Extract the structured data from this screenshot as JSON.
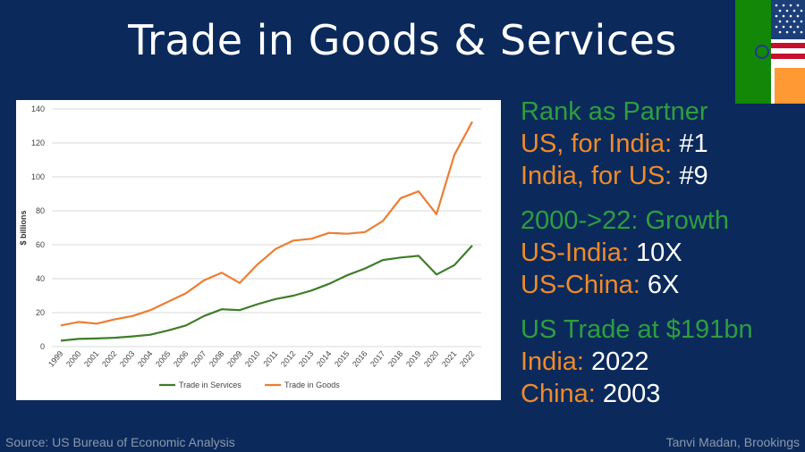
{
  "title": "Trade in Goods & Services",
  "right_panel": {
    "rank_heading": "Rank as Partner",
    "rank_1_label": "US, for India:",
    "rank_1_value": "#1",
    "rank_2_label": "India, for US:",
    "rank_2_value": "#9",
    "growth_heading": "2000->22: Growth",
    "growth_1_label": "US-India:",
    "growth_1_value": "10X",
    "growth_2_label": "US-China:",
    "growth_2_value": "6X",
    "trade_heading": "US Trade at $191bn",
    "trade_1_label": "India:",
    "trade_1_value": "2022",
    "trade_2_label": "China:",
    "trade_2_value": "2003"
  },
  "footer": {
    "source": "Source: US Bureau of Economic Analysis",
    "credit": "Tanvi Madan, Brookings"
  },
  "colors": {
    "background": "#0b2a5b",
    "services": "#3f7d2a",
    "goods": "#ed7d31",
    "heading_green": "#2e9e3f",
    "label_orange": "#ef8a2a"
  },
  "flag_icon": "us-india-flag-icon",
  "chart_data": {
    "type": "line",
    "title": "",
    "xlabel": "",
    "ylabel": "$ billions",
    "ylim": [
      0,
      140
    ],
    "yticks": [
      0,
      20,
      40,
      60,
      80,
      100,
      120,
      140
    ],
    "grid": true,
    "legend_position": "bottom",
    "categories": [
      "1999",
      "2000",
      "2001",
      "2002",
      "2003",
      "2004",
      "2005",
      "2006",
      "2007",
      "2008",
      "2009",
      "2010",
      "2011",
      "2012",
      "2013",
      "2014",
      "2015",
      "2016",
      "2017",
      "2018",
      "2019",
      "2020",
      "2021",
      "2022"
    ],
    "series": [
      {
        "name": "Trade in Services",
        "color": "#3f7d2a",
        "values": [
          3.5,
          4.5,
          4.8,
          5.2,
          6,
          7,
          9.5,
          12.5,
          18,
          22,
          21.5,
          25,
          28,
          30,
          33,
          37,
          42,
          46,
          51,
          52.5,
          53.5,
          42.5,
          48,
          59.5
        ]
      },
      {
        "name": "Trade in Goods",
        "color": "#ed7d31",
        "values": [
          12.5,
          14.5,
          13.5,
          16,
          18,
          21.5,
          26.5,
          31.5,
          39,
          43.5,
          37.5,
          48.5,
          57.5,
          62.5,
          63.5,
          67,
          66.5,
          67.5,
          74,
          87.5,
          91.5,
          78,
          113,
          132.5
        ]
      }
    ]
  }
}
